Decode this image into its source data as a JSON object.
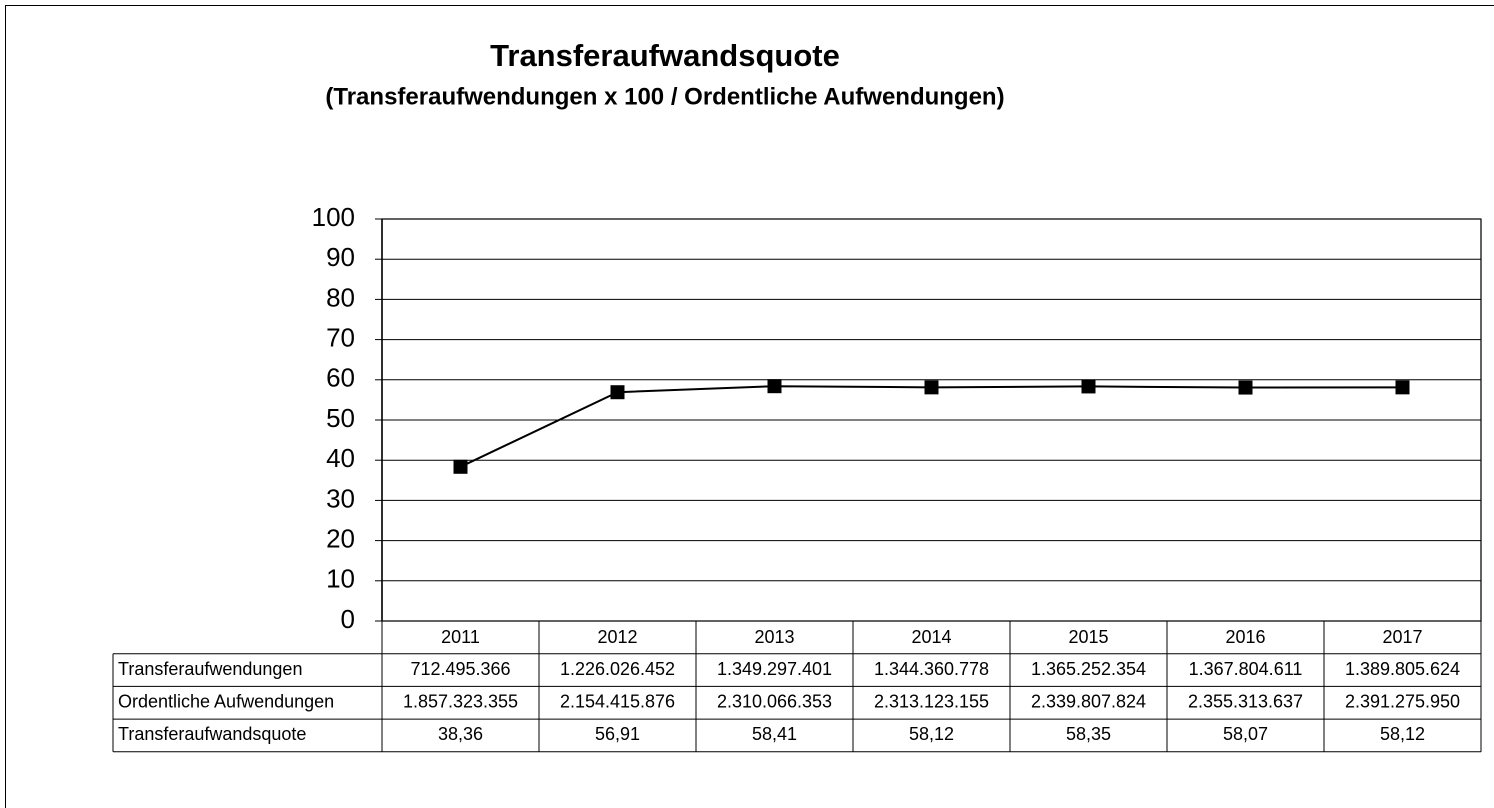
{
  "chart_data": {
    "type": "line",
    "title": "Transferaufwandsquote",
    "subtitle": "(Transferaufwendungen x 100 / Ordentliche Aufwendungen)",
    "categories": [
      "2011",
      "2012",
      "2013",
      "2014",
      "2015",
      "2016",
      "2017"
    ],
    "series": [
      {
        "name": "Transferaufwandsquote",
        "color": "#000000",
        "values": [
          38.36,
          56.91,
          58.41,
          58.12,
          58.35,
          58.07,
          58.12
        ],
        "value_labels": [
          "38,36",
          "56,91",
          "58,41",
          "58,12",
          "58,35",
          "58,07",
          "58,12"
        ]
      }
    ],
    "data_table": [
      {
        "name": "Transferaufwendungen",
        "values": [
          712495366,
          1226026452,
          1349297401,
          1344360778,
          1365252354,
          1367804611,
          1389805624
        ],
        "value_labels": [
          "712.495.366",
          "1.226.026.452",
          "1.349.297.401",
          "1.344.360.778",
          "1.365.252.354",
          "1.367.804.611",
          "1.389.805.624"
        ]
      },
      {
        "name": "Ordentliche Aufwendungen",
        "values": [
          1857323355,
          2154415876,
          2310066353,
          2313123155,
          2339807824,
          2355313637,
          2391275950
        ],
        "value_labels": [
          "1.857.323.355",
          "2.154.415.876",
          "2.310.066.353",
          "2.313.123.155",
          "2.339.807.824",
          "2.355.313.637",
          "2.391.275.950"
        ]
      }
    ],
    "ylim": [
      0,
      100
    ],
    "yticks": [
      0,
      10,
      20,
      30,
      40,
      50,
      60,
      70,
      80,
      90,
      100
    ],
    "grid": true
  }
}
